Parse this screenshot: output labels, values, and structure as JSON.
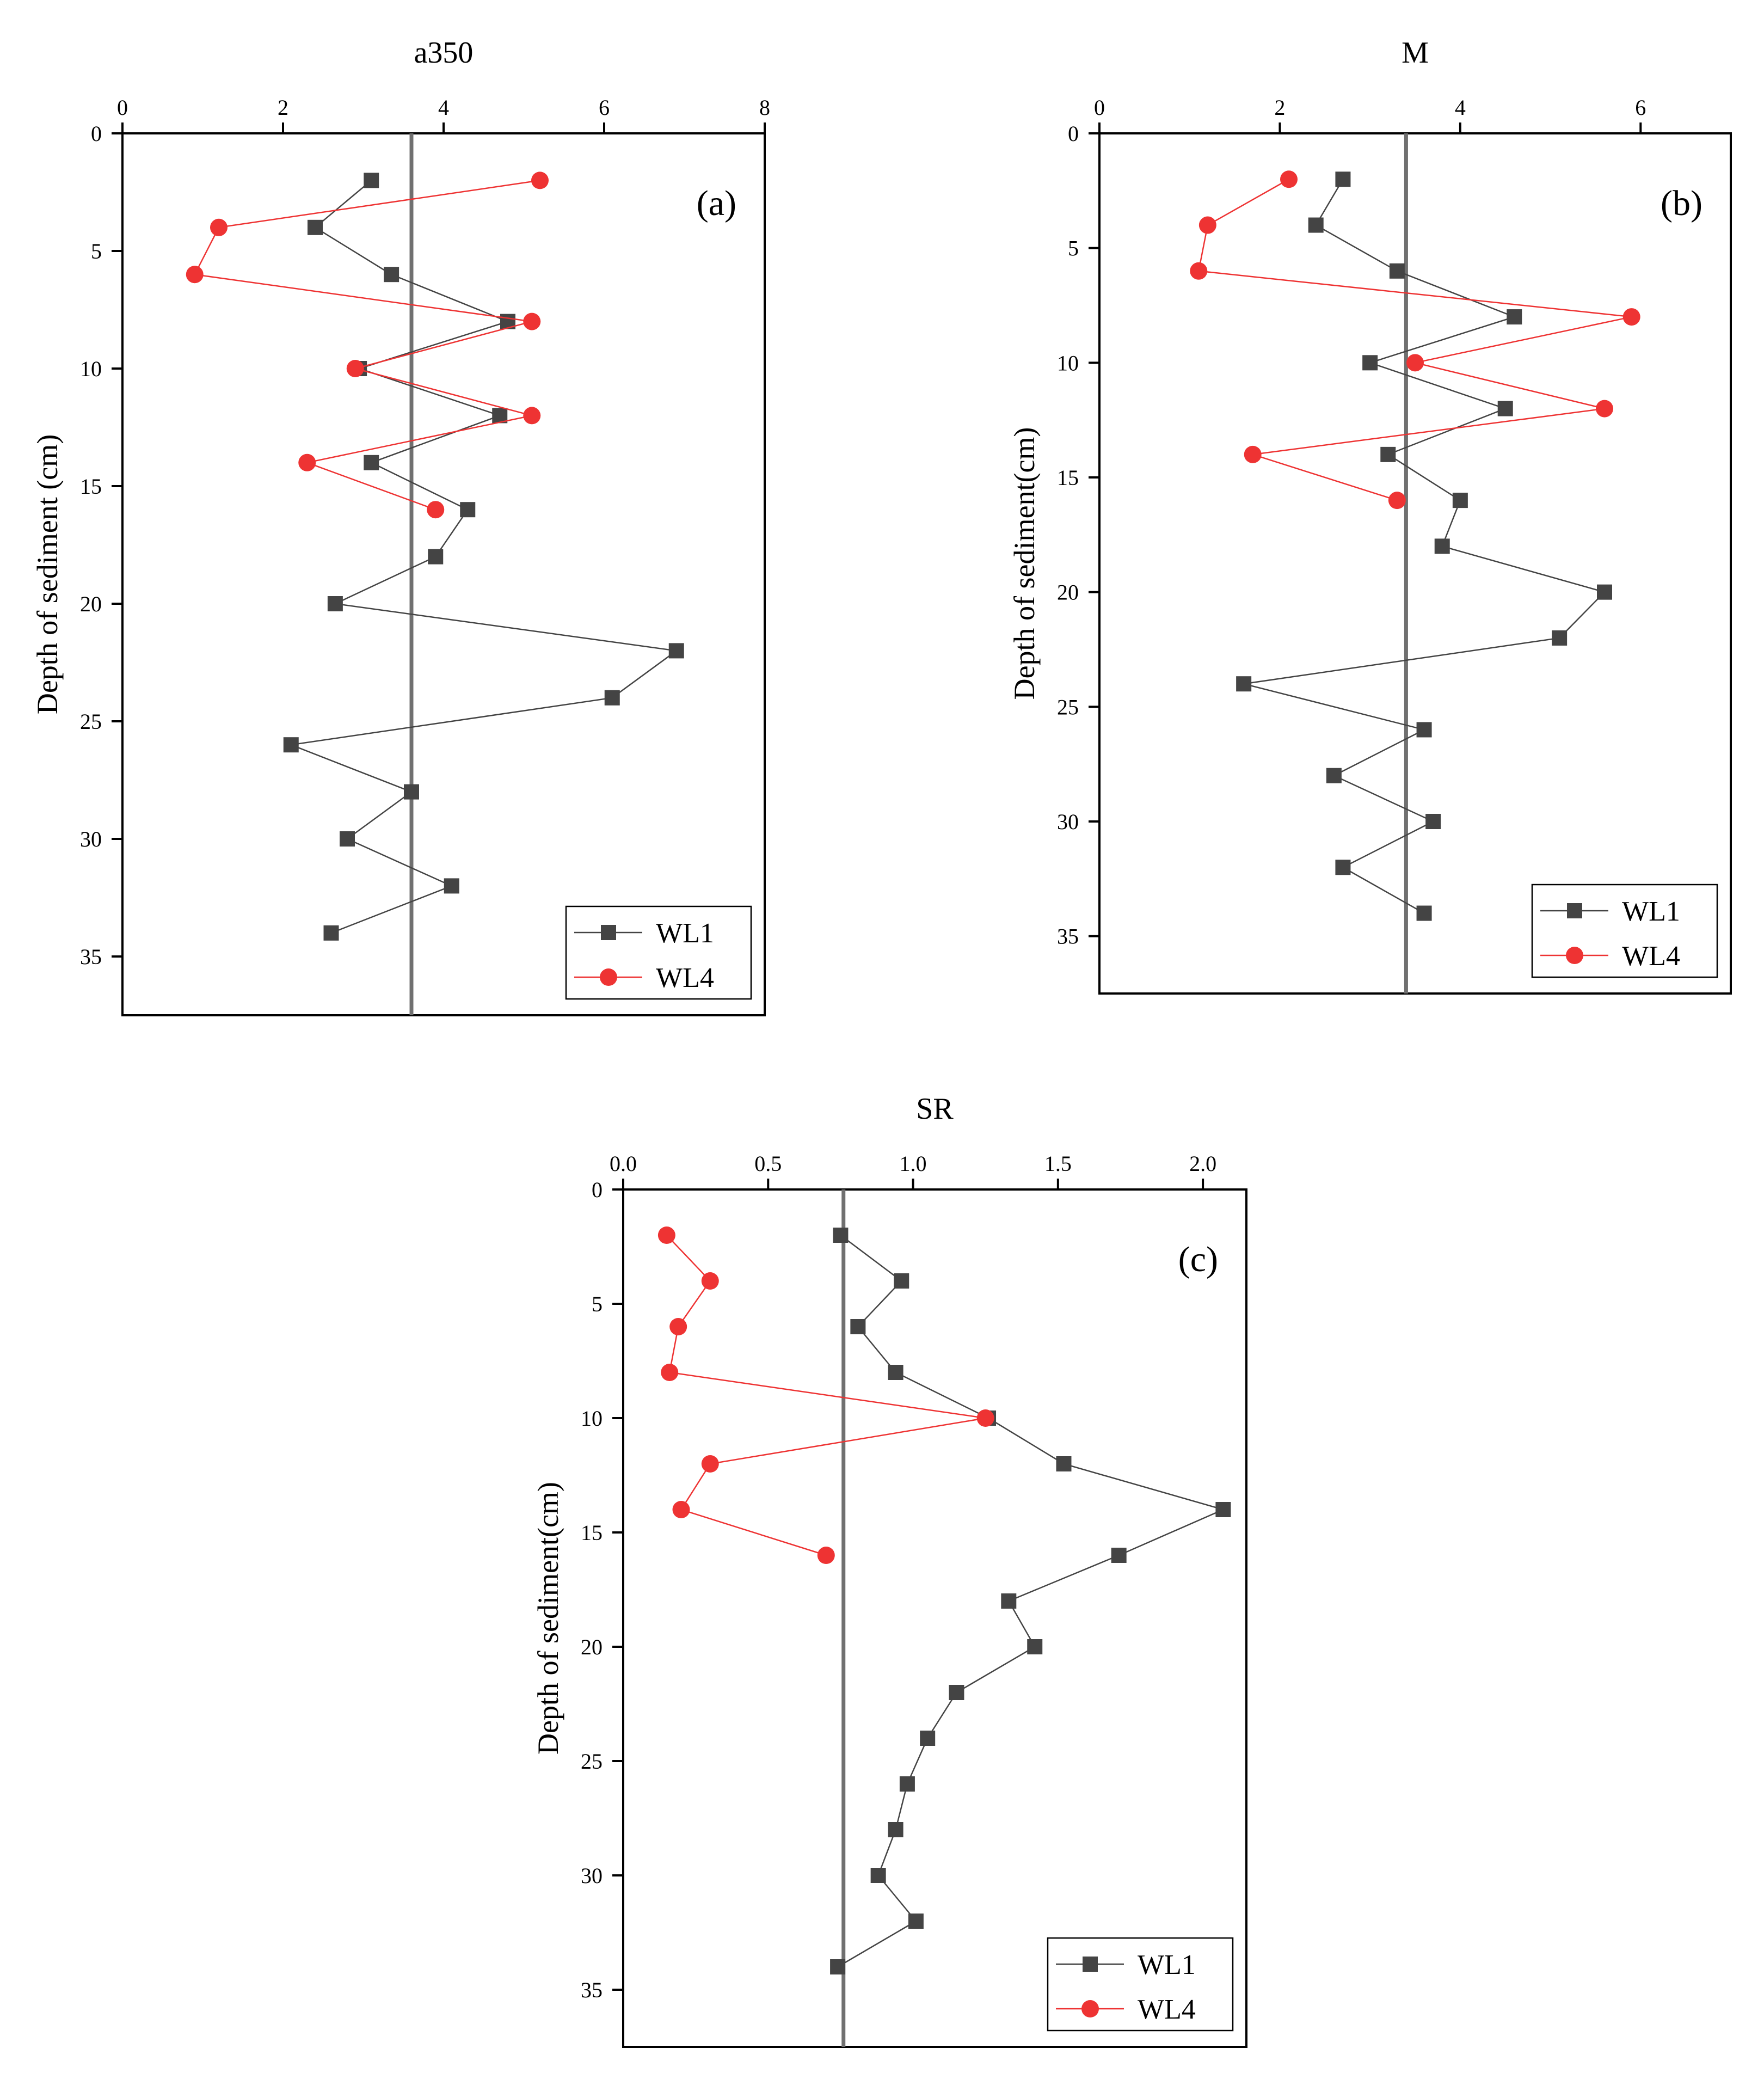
{
  "chart_data": [
    {
      "type": "line",
      "panel_label": "(a)",
      "title": "a350",
      "xlabel": "a350",
      "ylabel": "Depth of sediment (cm)",
      "xlim": [
        0,
        8
      ],
      "ylim": [
        0,
        37.5
      ],
      "x_ticks": [
        0,
        2,
        4,
        6,
        8
      ],
      "x_tick_labels": [
        "0",
        "2",
        "4",
        "6",
        "8"
      ],
      "y_ticks": [
        0,
        5,
        10,
        15,
        20,
        25,
        30,
        35
      ],
      "y_tick_labels": [
        "0",
        "5",
        "10",
        "15",
        "20",
        "25",
        "30",
        "35"
      ],
      "reference_line_x": 3.6,
      "legend_position": "bottom-right",
      "series": [
        {
          "name": "WL1",
          "marker": "square",
          "color": "#444444",
          "depth": [
            2,
            4,
            6,
            8,
            10,
            12,
            14,
            16,
            18,
            20,
            22,
            24,
            26,
            28,
            30,
            32,
            34
          ],
          "values": [
            3.1,
            2.4,
            3.35,
            4.8,
            2.95,
            4.7,
            3.1,
            4.3,
            3.9,
            2.65,
            6.9,
            6.1,
            2.1,
            3.6,
            2.8,
            4.1,
            2.6
          ]
        },
        {
          "name": "WL4",
          "marker": "circle",
          "color": "#ee3333",
          "depth": [
            2,
            4,
            6,
            8,
            10,
            12,
            14,
            16
          ],
          "values": [
            5.2,
            1.2,
            0.9,
            5.1,
            2.9,
            5.1,
            2.3,
            3.9
          ]
        }
      ]
    },
    {
      "type": "line",
      "panel_label": "(b)",
      "title": "M",
      "xlabel": "M",
      "ylabel": "Depth of sediment(cm)",
      "xlim": [
        0,
        7
      ],
      "ylim": [
        0,
        37.5
      ],
      "x_ticks": [
        0,
        2,
        4,
        6
      ],
      "x_tick_labels": [
        "0",
        "2",
        "4",
        "6"
      ],
      "y_ticks": [
        0,
        5,
        10,
        15,
        20,
        25,
        30,
        35
      ],
      "y_tick_labels": [
        "0",
        "5",
        "10",
        "15",
        "20",
        "25",
        "30",
        "35"
      ],
      "reference_line_x": 3.4,
      "legend_position": "bottom-right",
      "series": [
        {
          "name": "WL1",
          "marker": "square",
          "color": "#444444",
          "depth": [
            2,
            4,
            6,
            8,
            10,
            12,
            14,
            16,
            18,
            20,
            22,
            24,
            26,
            28,
            30,
            32,
            34
          ],
          "values": [
            2.7,
            2.4,
            3.3,
            4.6,
            3.0,
            4.5,
            3.2,
            4.0,
            3.8,
            5.6,
            5.1,
            1.6,
            3.6,
            2.6,
            3.7,
            2.7,
            3.6
          ]
        },
        {
          "name": "WL4",
          "marker": "circle",
          "color": "#ee3333",
          "depth": [
            2,
            4,
            6,
            8,
            10,
            12,
            14,
            16
          ],
          "values": [
            2.1,
            1.2,
            1.1,
            5.9,
            3.5,
            5.6,
            1.7,
            3.3
          ]
        }
      ]
    },
    {
      "type": "line",
      "panel_label": "(c)",
      "title": "SR",
      "xlabel": "SR",
      "ylabel": "Depth of sediment(cm)",
      "xlim": [
        0,
        2.15
      ],
      "ylim": [
        0,
        37.5
      ],
      "x_ticks": [
        0,
        0.5,
        1,
        1.5,
        2
      ],
      "x_tick_labels": [
        "0.0",
        "0.5",
        "1.0",
        "1.5",
        "2.0"
      ],
      "y_ticks": [
        0,
        5,
        10,
        15,
        20,
        25,
        30,
        35
      ],
      "y_tick_labels": [
        "0",
        "5",
        "10",
        "15",
        "20",
        "25",
        "30",
        "35"
      ],
      "reference_line_x": 0.76,
      "legend_position": "bottom-right",
      "series": [
        {
          "name": "WL1",
          "marker": "square",
          "color": "#444444",
          "depth": [
            2,
            4,
            6,
            8,
            10,
            12,
            14,
            16,
            18,
            20,
            22,
            24,
            26,
            28,
            30,
            32,
            34
          ],
          "values": [
            0.75,
            0.96,
            0.81,
            0.94,
            1.26,
            1.52,
            2.07,
            1.71,
            1.33,
            1.42,
            1.15,
            1.05,
            0.98,
            0.94,
            0.88,
            1.01,
            0.74
          ]
        },
        {
          "name": "WL4",
          "marker": "circle",
          "color": "#ee3333",
          "depth": [
            2,
            4,
            6,
            8,
            10,
            12,
            14,
            16
          ],
          "values": [
            0.15,
            0.3,
            0.19,
            0.16,
            1.25,
            0.3,
            0.2,
            0.7
          ]
        }
      ]
    }
  ]
}
